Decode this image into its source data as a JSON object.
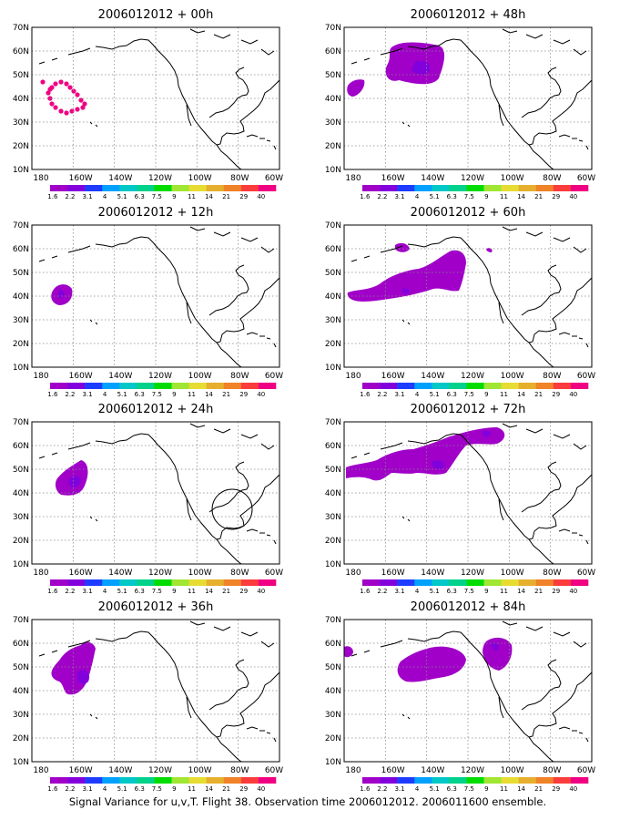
{
  "figure": {
    "caption": "Signal Variance for u,v,T. Flight 38. Observation time 2006012012. 2006011600 ensemble.",
    "colors": [
      "#a000c8",
      "#8200dc",
      "#1e3cff",
      "#00a0ff",
      "#00c8c8",
      "#00d28c",
      "#00dc00",
      "#a0e632",
      "#e6dc32",
      "#e6af2d",
      "#f08228",
      "#fa3c3c",
      "#f00082"
    ],
    "coastline_color": "#000000",
    "grid": "dotted",
    "colorbar": {
      "labels": [
        "1.6",
        "2.2",
        "3.1",
        "4",
        "5.1",
        "6.3",
        "7.5",
        "9",
        "11",
        "14",
        "21",
        "29",
        "40"
      ]
    },
    "axes": {
      "lon_labels": [
        "180",
        "160W",
        "140W",
        "120W",
        "100W",
        "80W",
        "60W"
      ],
      "lat_labels": [
        "10N",
        "20N",
        "30N",
        "40N",
        "50N",
        "60N",
        "70N"
      ]
    },
    "panels": [
      {
        "title": "2006012012 + 00h"
      },
      {
        "title": "2006012012 + 48h"
      },
      {
        "title": "2006012012 + 12h"
      },
      {
        "title": "2006012012 + 60h"
      },
      {
        "title": "2006012012 + 24h"
      },
      {
        "title": "2006012012 + 72h"
      },
      {
        "title": "2006012012 + 36h"
      },
      {
        "title": "2006012012 + 84h"
      }
    ]
  }
}
